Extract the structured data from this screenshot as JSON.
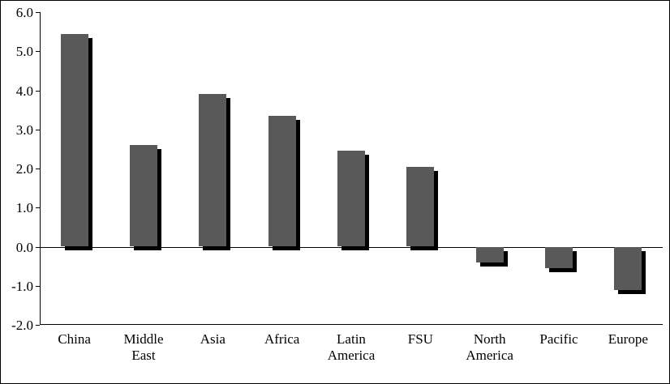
{
  "chart_data": {
    "type": "bar",
    "title": "",
    "xlabel": "",
    "ylabel": "",
    "categories": [
      "China",
      "Middle East",
      "Asia",
      "Africa",
      "Latin America",
      "FSU",
      "North America",
      "Pacific",
      "Europe"
    ],
    "values": [
      5.45,
      2.6,
      3.9,
      3.35,
      2.45,
      2.05,
      -0.4,
      -0.55,
      -1.1
    ],
    "ylim": [
      -2.0,
      6.0
    ],
    "ytick_step": 1.0,
    "ytick_labels": [
      "-2.0",
      "-1.0",
      "0.0",
      "1.0",
      "2.0",
      "3.0",
      "4.0",
      "5.0",
      "6.0"
    ],
    "grid": false,
    "legend": false,
    "bar_color": "#595959",
    "shadow_color": "#000000",
    "axis_color": "#000000",
    "background_color": "#ffffff"
  }
}
